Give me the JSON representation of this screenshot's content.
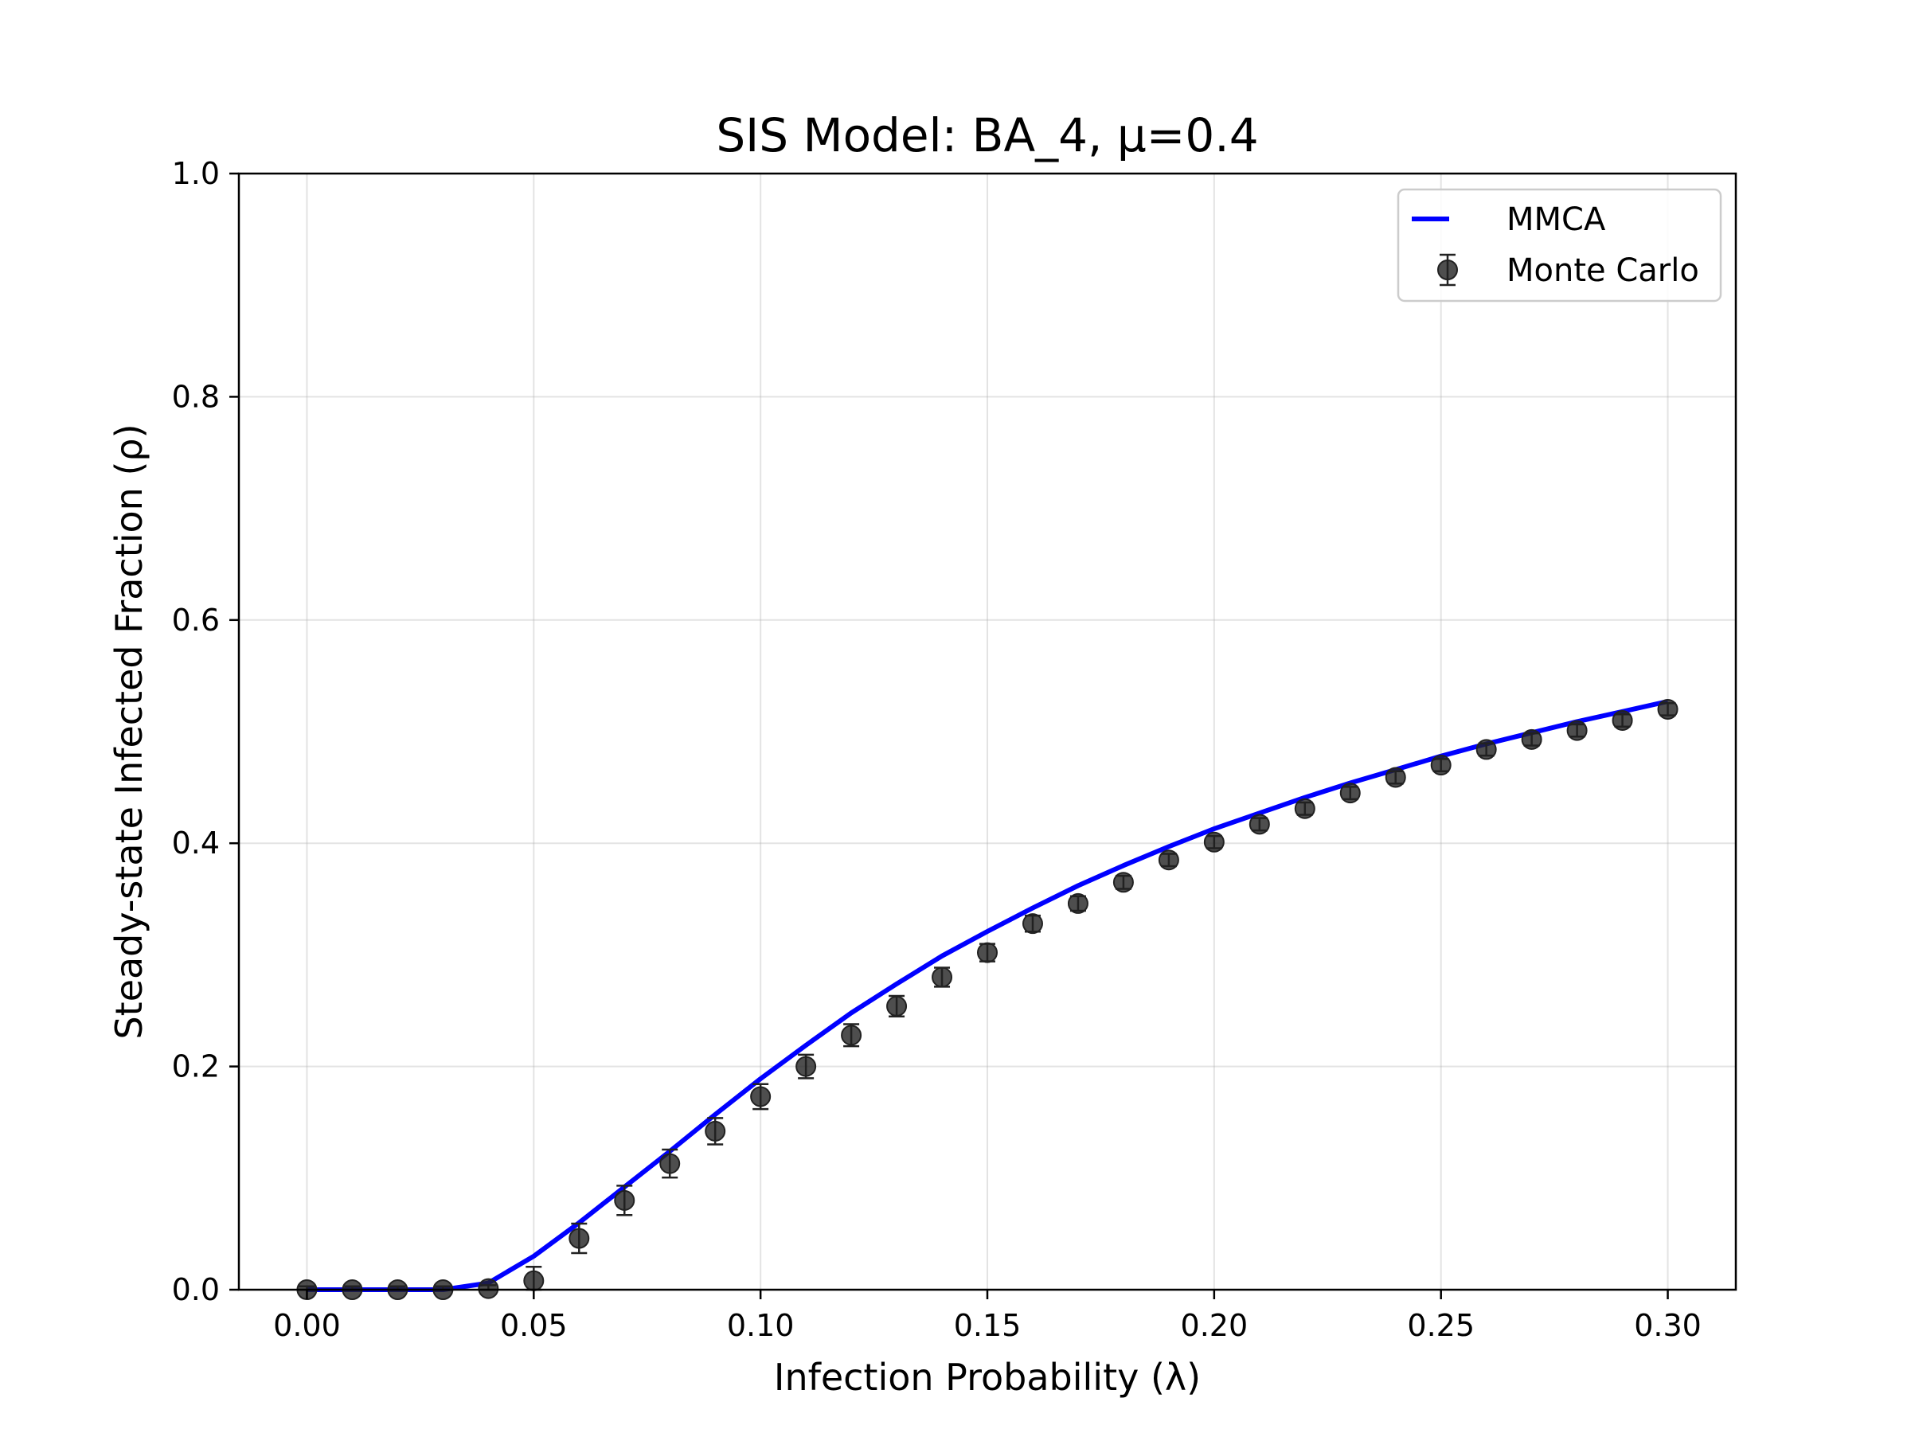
{
  "chart_data": {
    "type": "line",
    "title": "SIS Model: BA_4, μ=0.4",
    "xlabel": "Infection Probability (λ)",
    "ylabel": "Steady-state Infected Fraction (ρ)",
    "xlim": [
      -0.015,
      0.315
    ],
    "ylim": [
      0.0,
      1.0
    ],
    "xticks": [
      "0.00",
      "0.05",
      "0.10",
      "0.15",
      "0.20",
      "0.25",
      "0.30"
    ],
    "yticks": [
      "0.0",
      "0.2",
      "0.4",
      "0.6",
      "0.8",
      "1.0"
    ],
    "grid": true,
    "legend_position": "upper right",
    "series": [
      {
        "name": "MMCA",
        "kind": "line",
        "color": "#0000ff",
        "x": [
          0.0,
          0.01,
          0.02,
          0.03,
          0.04,
          0.05,
          0.06,
          0.07,
          0.08,
          0.09,
          0.1,
          0.11,
          0.12,
          0.13,
          0.14,
          0.15,
          0.16,
          0.17,
          0.18,
          0.19,
          0.2,
          0.21,
          0.22,
          0.23,
          0.24,
          0.25,
          0.26,
          0.27,
          0.28,
          0.29,
          0.3
        ],
        "y": [
          0.0,
          0.0,
          0.0,
          0.0,
          0.006,
          0.03,
          0.06,
          0.092,
          0.124,
          0.157,
          0.189,
          0.219,
          0.248,
          0.274,
          0.299,
          0.321,
          0.342,
          0.362,
          0.38,
          0.397,
          0.413,
          0.427,
          0.441,
          0.454,
          0.466,
          0.478,
          0.489,
          0.499,
          0.509,
          0.518,
          0.527
        ]
      },
      {
        "name": "Monte Carlo",
        "kind": "errorbar",
        "color": "#222222",
        "x": [
          0.0,
          0.01,
          0.02,
          0.03,
          0.04,
          0.05,
          0.06,
          0.07,
          0.08,
          0.09,
          0.1,
          0.11,
          0.12,
          0.13,
          0.14,
          0.15,
          0.16,
          0.17,
          0.18,
          0.19,
          0.2,
          0.21,
          0.22,
          0.23,
          0.24,
          0.25,
          0.26,
          0.27,
          0.28,
          0.29,
          0.3
        ],
        "y": [
          0.0,
          0.0,
          0.0,
          0.0,
          0.001,
          0.008,
          0.046,
          0.08,
          0.113,
          0.142,
          0.173,
          0.2,
          0.228,
          0.254,
          0.28,
          0.302,
          0.328,
          0.346,
          0.365,
          0.385,
          0.401,
          0.417,
          0.431,
          0.445,
          0.459,
          0.47,
          0.484,
          0.493,
          0.501,
          0.51,
          0.52
        ]
      }
    ]
  }
}
